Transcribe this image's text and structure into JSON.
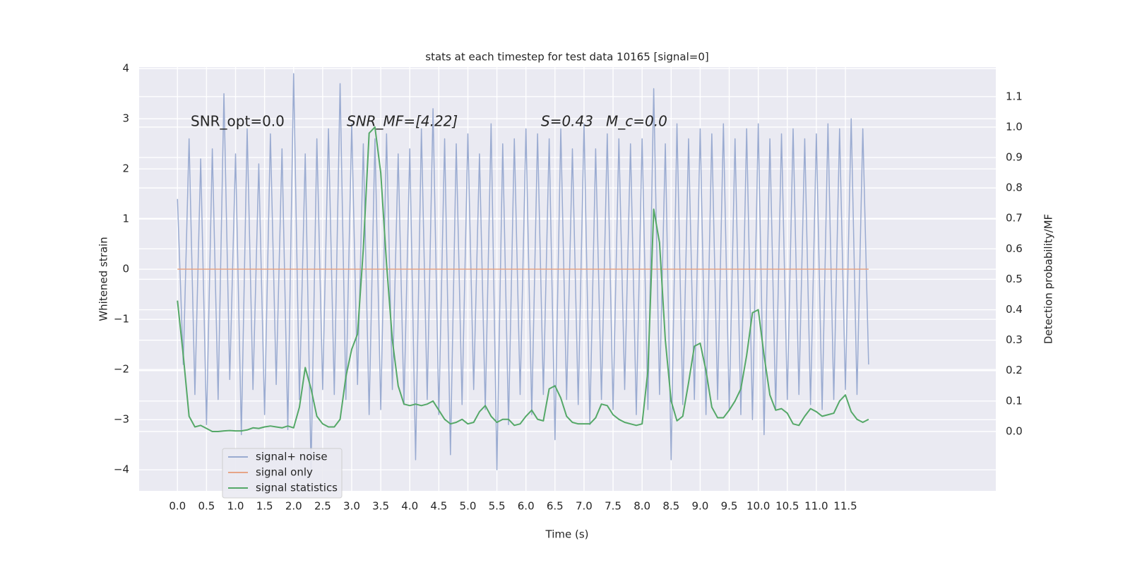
{
  "chart_data": {
    "type": "line",
    "title": "stats at each timestep for test data 10165 [signal=0]",
    "xlabel": "Time (s)",
    "ylabel": "Whitened strain",
    "y2label": "Detection probability/MF",
    "annotations": [
      "SNR_opt=0.0",
      "SNR_MF=[4.22]",
      "S=0.43",
      "M_c=0.0"
    ],
    "grid": true,
    "legend": "lower left",
    "xlim": [
      -0.66,
      14.09
    ],
    "ylim": [
      -4.42,
      4.03
    ],
    "y2lim": [
      -0.195,
      1.197
    ],
    "xticks": [
      {
        "value": 0,
        "label": "0.0"
      },
      0.5,
      {
        "value": 1,
        "label": "1.0"
      },
      1.5,
      {
        "value": 2,
        "label": "2.0"
      },
      2.5,
      {
        "value": 3,
        "label": "3.0"
      },
      3.5,
      {
        "value": 4,
        "label": "4.0"
      },
      4.5,
      {
        "value": 5,
        "label": "5.0"
      },
      5.5,
      {
        "value": 6,
        "label": "6.0"
      },
      6.5,
      {
        "value": 7,
        "label": "7.0"
      },
      7.5,
      {
        "value": 8,
        "label": "8.0"
      },
      8.5,
      {
        "value": 9,
        "label": "9.0"
      },
      9.5,
      {
        "value": 10,
        "label": "10.0"
      },
      10.5,
      {
        "value": 11,
        "label": "11.0"
      },
      11.5
    ],
    "yticks": [
      {
        "value": -4,
        "label": "−4"
      },
      {
        "value": -3,
        "label": "−3"
      },
      {
        "value": -2,
        "label": "−2"
      },
      {
        "value": -1,
        "label": "−1"
      },
      0,
      1,
      2,
      3,
      4
    ],
    "y2ticks": [
      {
        "value": 0,
        "label": "0.0"
      },
      0.1,
      0.2,
      0.3,
      0.4,
      0.5,
      0.6,
      0.7,
      0.8,
      0.9,
      {
        "value": 1,
        "label": "1.0"
      },
      1.1
    ],
    "x": [
      0,
      0.1,
      0.2,
      0.3,
      0.4,
      0.5,
      0.6,
      0.7,
      0.8,
      0.9,
      1,
      1.1,
      1.2,
      1.3,
      1.4,
      1.5,
      1.6,
      1.7,
      1.8,
      1.9,
      2,
      2.1,
      2.2,
      2.3,
      2.4,
      2.5,
      2.6,
      2.7,
      2.8,
      2.9,
      3,
      3.1,
      3.2,
      3.3,
      3.4,
      3.5,
      3.6,
      3.7,
      3.8,
      3.9,
      4,
      4.1,
      4.2,
      4.3,
      4.4,
      4.5,
      4.6,
      4.7,
      4.8,
      4.9,
      5,
      5.1,
      5.2,
      5.3,
      5.4,
      5.5,
      5.6,
      5.7,
      5.8,
      5.9,
      6,
      6.1,
      6.2,
      6.3,
      6.4,
      6.5,
      6.6,
      6.7,
      6.8,
      6.9,
      7,
      7.1,
      7.2,
      7.3,
      7.4,
      7.5,
      7.6,
      7.7,
      7.8,
      7.9,
      8,
      8.1,
      8.2,
      8.3,
      8.4,
      8.5,
      8.6,
      8.7,
      8.8,
      8.9,
      9,
      9.1,
      9.2,
      9.3,
      9.4,
      9.5,
      9.6,
      9.7,
      9.8,
      9.9,
      10,
      10.1,
      10.2,
      10.3,
      10.4,
      10.5,
      10.6,
      10.7,
      10.8,
      10.9,
      11,
      11.1,
      11.2,
      11.3,
      11.4,
      11.5,
      11.6,
      11.7,
      11.8,
      11.9
    ],
    "series": [
      {
        "name": "signal+ noise",
        "color": "#9aabd1",
        "axis": "y",
        "values": [
          1.4,
          -1.9,
          2.6,
          -2.5,
          2.2,
          -3.1,
          2.4,
          -2.6,
          3.5,
          -2.2,
          2.3,
          -3.3,
          2.8,
          -2.4,
          2.1,
          -2.9,
          2.7,
          -2.3,
          2.4,
          -3.2,
          3.9,
          -2.6,
          2.3,
          -4.0,
          2.6,
          -2.4,
          2.8,
          -2.5,
          3.7,
          -2.6,
          2.9,
          -2.3,
          2.5,
          -2.9,
          2.6,
          -2.8,
          2.7,
          -2.4,
          2.3,
          -2.7,
          2.4,
          -3.8,
          2.8,
          -2.6,
          3.2,
          -2.9,
          2.6,
          -3.7,
          2.5,
          -2.7,
          2.7,
          -2.4,
          2.3,
          -2.8,
          2.9,
          -4.0,
          2.5,
          -3.1,
          2.6,
          -2.5,
          2.8,
          -2.9,
          2.7,
          -2.5,
          2.6,
          -3.4,
          2.8,
          -2.6,
          2.4,
          -2.7,
          2.9,
          -3.1,
          2.4,
          -2.6,
          2.7,
          -2.8,
          2.6,
          -2.4,
          2.5,
          -2.9,
          2.6,
          -2.8,
          3.6,
          -2.5,
          2.5,
          -3.8,
          2.9,
          -2.7,
          2.6,
          -2.6,
          2.8,
          -2.9,
          2.7,
          -2.6,
          2.9,
          -2.8,
          2.6,
          -2.9,
          2.8,
          -3.0,
          2.9,
          -3.3,
          2.6,
          -2.8,
          2.7,
          -2.6,
          2.8,
          -2.5,
          2.6,
          -2.7,
          2.7,
          -2.8,
          2.9,
          -2.6,
          2.8,
          -2.4,
          3.0,
          -2.5,
          2.8,
          -1.9
        ]
      },
      {
        "name": "signal only",
        "color": "#e6a587",
        "axis": "y",
        "values": [
          0,
          0,
          0,
          0,
          0,
          0,
          0,
          0,
          0,
          0,
          0,
          0,
          0,
          0,
          0,
          0,
          0,
          0,
          0,
          0,
          0,
          0,
          0,
          0,
          0,
          0,
          0,
          0,
          0,
          0,
          0,
          0,
          0,
          0,
          0,
          0,
          0,
          0,
          0,
          0,
          0,
          0,
          0,
          0,
          0,
          0,
          0,
          0,
          0,
          0,
          0,
          0,
          0,
          0,
          0,
          0,
          0,
          0,
          0,
          0,
          0,
          0,
          0,
          0,
          0,
          0,
          0,
          0,
          0,
          0,
          0,
          0,
          0,
          0,
          0,
          0,
          0,
          0,
          0,
          0,
          0,
          0,
          0,
          0,
          0,
          0,
          0,
          0,
          0,
          0,
          0,
          0,
          0,
          0,
          0,
          0,
          0,
          0,
          0,
          0,
          0,
          0,
          0,
          0,
          0,
          0,
          0,
          0,
          0,
          0,
          0,
          0,
          0,
          0,
          0,
          0,
          0,
          0,
          0,
          0
        ]
      },
      {
        "name": "signal statistics",
        "color": "#55a868",
        "axis": "y2",
        "values": [
          0.43,
          0.25,
          0.05,
          0.015,
          0.02,
          0.01,
          0,
          0,
          0.002,
          0.003,
          0.002,
          0.002,
          0.005,
          0.012,
          0.01,
          0.015,
          0.018,
          0.015,
          0.012,
          0.018,
          0.012,
          0.08,
          0.21,
          0.14,
          0.05,
          0.025,
          0.015,
          0.015,
          0.04,
          0.18,
          0.27,
          0.32,
          0.6,
          0.98,
          1.0,
          0.85,
          0.55,
          0.3,
          0.15,
          0.09,
          0.085,
          0.09,
          0.085,
          0.09,
          0.1,
          0.07,
          0.04,
          0.025,
          0.03,
          0.04,
          0.025,
          0.03,
          0.065,
          0.085,
          0.05,
          0.03,
          0.04,
          0.04,
          0.02,
          0.025,
          0.05,
          0.07,
          0.04,
          0.035,
          0.14,
          0.15,
          0.11,
          0.05,
          0.03,
          0.025,
          0.025,
          0.025,
          0.045,
          0.09,
          0.085,
          0.055,
          0.04,
          0.03,
          0.025,
          0.02,
          0.025,
          0.2,
          0.73,
          0.62,
          0.3,
          0.1,
          0.035,
          0.05,
          0.16,
          0.28,
          0.29,
          0.2,
          0.08,
          0.045,
          0.045,
          0.07,
          0.1,
          0.14,
          0.25,
          0.39,
          0.4,
          0.25,
          0.12,
          0.07,
          0.075,
          0.06,
          0.025,
          0.02,
          0.05,
          0.075,
          0.065,
          0.05,
          0.055,
          0.06,
          0.1,
          0.12,
          0.065,
          0.04,
          0.03,
          0.04
        ]
      }
    ]
  }
}
